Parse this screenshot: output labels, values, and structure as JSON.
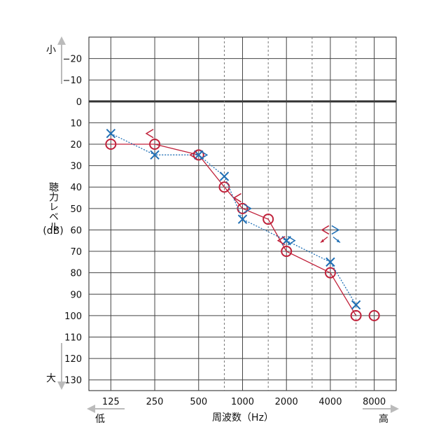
{
  "chart_data": {
    "type": "scatter",
    "title": "",
    "xlabel": "周波数（Hz）",
    "ylabel": "聴力レベル（dB）",
    "x_scale": "log2",
    "y_inverted": true,
    "xlim": [
      88.4,
      11314
    ],
    "ylim": [
      -30,
      135
    ],
    "x_ticks": [
      125,
      250,
      500,
      1000,
      2000,
      4000,
      8000
    ],
    "x_tick_labels": [
      "125",
      "250",
      "500",
      "1000",
      "2000",
      "4000",
      "8000"
    ],
    "x_dashed_lines": [
      750,
      1500,
      3000,
      6000
    ],
    "y_ticks": [
      -20,
      -10,
      0,
      10,
      20,
      30,
      40,
      50,
      60,
      70,
      80,
      90,
      100,
      110,
      120,
      130
    ],
    "y_tick_labels": [
      "−20",
      "−10",
      "0",
      "10",
      "20",
      "30",
      "40",
      "50",
      "60",
      "70",
      "80",
      "90",
      "100",
      "110",
      "120",
      "130"
    ],
    "y_top_label": "小",
    "y_bottom_label": "大",
    "x_left_label": "低",
    "x_right_label": "高",
    "grid": true,
    "legend": "none",
    "series": [
      {
        "marker": "circle",
        "color": "#c0213a",
        "line": "solid",
        "points": [
          [
            125,
            20
          ],
          [
            250,
            20
          ],
          [
            500,
            25
          ],
          [
            750,
            40
          ],
          [
            1000,
            50
          ],
          [
            1500,
            55
          ],
          [
            2000,
            70
          ],
          [
            4000,
            80
          ],
          [
            6000,
            100
          ],
          [
            8000,
            100
          ]
        ],
        "connect_count": 9
      },
      {
        "marker": "cross",
        "color": "#1f6fb5",
        "line": "dotted",
        "points": [
          [
            125,
            15
          ],
          [
            250,
            25
          ],
          [
            500,
            25
          ],
          [
            750,
            35
          ],
          [
            1000,
            55
          ],
          [
            2000,
            65
          ],
          [
            4000,
            75
          ],
          [
            6000,
            95
          ]
        ],
        "connect_count": 8
      },
      {
        "marker": "bracket-left",
        "color": "#c0213a",
        "line": "solid",
        "points": [
          [
            250,
            15
          ],
          [
            500,
            25
          ],
          [
            1000,
            45
          ],
          [
            2000,
            65
          ],
          [
            4000,
            60
          ]
        ],
        "connect_count": 0
      },
      {
        "marker": "bracket-right",
        "color": "#1f6fb5",
        "line": "solid",
        "points": [
          [
            500,
            25
          ],
          [
            1000,
            50
          ],
          [
            2000,
            65
          ],
          [
            4000,
            60
          ]
        ],
        "connect_count": 0
      }
    ],
    "annotations": [
      {
        "type": "scale-out-arrow",
        "x": 4000,
        "y": 60,
        "color": "#c0213a",
        "direction": "down-left"
      },
      {
        "type": "scale-out-arrow",
        "x": 4000,
        "y": 60,
        "color": "#1f6fb5",
        "direction": "down-right"
      }
    ]
  }
}
